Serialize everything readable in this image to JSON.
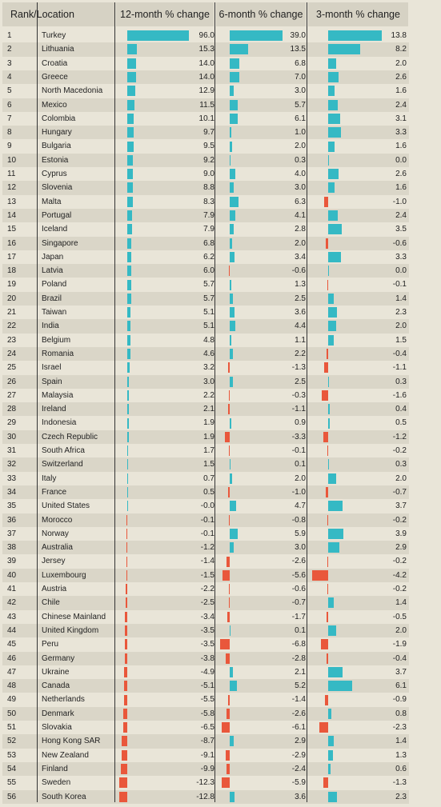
{
  "headers": {
    "rank_location": "Rank/Location",
    "col1": "12-month % change",
    "col2": "6-month % change",
    "col3": "3-month % change"
  },
  "colors": {
    "positive": "#35b9c4",
    "negative": "#e9573b"
  },
  "chart_data": {
    "type": "table",
    "columns": [
      "Rank",
      "Location",
      "12-month % change",
      "6-month % change",
      "3-month % change"
    ],
    "rows": [
      [
        1,
        "Turkey",
        "96.0",
        "39.0",
        "13.8"
      ],
      [
        2,
        "Lithuania",
        "15.3",
        "13.5",
        "8.2"
      ],
      [
        3,
        "Croatia",
        "14.0",
        "6.8",
        "2.0"
      ],
      [
        4,
        "Greece",
        "14.0",
        "7.0",
        "2.6"
      ],
      [
        5,
        "North Macedonia",
        "12.9",
        "3.0",
        "1.6"
      ],
      [
        6,
        "Mexico",
        "11.5",
        "5.7",
        "2.4"
      ],
      [
        7,
        "Colombia",
        "10.1",
        "6.1",
        "3.1"
      ],
      [
        8,
        "Hungary",
        "9.7",
        "1.0",
        "3.3"
      ],
      [
        9,
        "Bulgaria",
        "9.5",
        "2.0",
        "1.6"
      ],
      [
        10,
        "Estonia",
        "9.2",
        "0.3",
        "0.0"
      ],
      [
        11,
        "Cyprus",
        "9.0",
        "4.0",
        "2.6"
      ],
      [
        12,
        "Slovenia",
        "8.8",
        "3.0",
        "1.6"
      ],
      [
        13,
        "Malta",
        "8.3",
        "6.3",
        "-1.0"
      ],
      [
        14,
        "Portugal",
        "7.9",
        "4.1",
        "2.4"
      ],
      [
        15,
        "Iceland",
        "7.9",
        "2.8",
        "3.5"
      ],
      [
        16,
        "Singapore",
        "6.8",
        "2.0",
        "-0.6"
      ],
      [
        17,
        "Japan",
        "6.2",
        "3.4",
        "3.3"
      ],
      [
        18,
        "Latvia",
        "6.0",
        "-0.6",
        "0.0"
      ],
      [
        19,
        "Poland",
        "5.7",
        "1.3",
        "-0.1"
      ],
      [
        20,
        "Brazil",
        "5.7",
        "2.5",
        "1.4"
      ],
      [
        21,
        "Taiwan",
        "5.1",
        "3.6",
        "2.3"
      ],
      [
        22,
        "India",
        "5.1",
        "4.4",
        "2.0"
      ],
      [
        23,
        "Belgium",
        "4.8",
        "1.1",
        "1.5"
      ],
      [
        24,
        "Romania",
        "4.6",
        "2.2",
        "-0.4"
      ],
      [
        25,
        "Israel",
        "3.2",
        "-1.3",
        "-1.1"
      ],
      [
        26,
        "Spain",
        "3.0",
        "2.5",
        "0.3"
      ],
      [
        27,
        "Malaysia",
        "2.2",
        "-0.3",
        "-1.6"
      ],
      [
        28,
        "Ireland",
        "2.1",
        "-1.1",
        "0.4"
      ],
      [
        29,
        "Indonesia",
        "1.9",
        "0.9",
        "0.5"
      ],
      [
        30,
        "Czech Republic",
        "1.9",
        "-3.3",
        "-1.2"
      ],
      [
        31,
        "South Africa",
        "1.7",
        "-0.1",
        "-0.2"
      ],
      [
        32,
        "Switzerland",
        "1.5",
        "0.1",
        "0.3"
      ],
      [
        33,
        "Italy",
        "0.7",
        "2.0",
        "2.0"
      ],
      [
        34,
        "France",
        "0.5",
        "-1.0",
        "-0.7"
      ],
      [
        35,
        "United States",
        "-0.0",
        "4.7",
        "3.7"
      ],
      [
        36,
        "Morocco",
        "-0.1",
        "-0.8",
        "-0.2"
      ],
      [
        37,
        "Norway",
        "-0.1",
        "5.9",
        "3.9"
      ],
      [
        38,
        "Australia",
        "-1.2",
        "3.0",
        "2.9"
      ],
      [
        39,
        "Jersey",
        "-1.4",
        "-2.6",
        "-0.2"
      ],
      [
        40,
        "Luxembourg",
        "-1.5",
        "-5.6",
        "-4.2"
      ],
      [
        41,
        "Austria",
        "-2.2",
        "-0.6",
        "-0.2"
      ],
      [
        42,
        "Chile",
        "-2.5",
        "-0.7",
        "1.4"
      ],
      [
        43,
        "Chinese Mainland",
        "-3.4",
        "-1.7",
        "-0.5"
      ],
      [
        44,
        "United Kingdom",
        "-3.5",
        "0.1",
        "2.0"
      ],
      [
        45,
        "Peru",
        "-3.5",
        "-6.8",
        "-1.9"
      ],
      [
        46,
        "Germany",
        "-3.8",
        "-2.8",
        "-0.4"
      ],
      [
        47,
        "Ukraine",
        "-4.9",
        "2.1",
        "3.7"
      ],
      [
        48,
        "Canada",
        "-5.1",
        "5.2",
        "6.1"
      ],
      [
        49,
        "Netherlands",
        "-5.5",
        "-1.4",
        "-0.9"
      ],
      [
        50,
        "Denmark",
        "-5.8",
        "-2.6",
        "0.8"
      ],
      [
        51,
        "Slovakia",
        "-6.5",
        "-6.1",
        "-2.3"
      ],
      [
        52,
        "Hong Kong SAR",
        "-8.7",
        "2.9",
        "1.4"
      ],
      [
        53,
        "New Zealand",
        "-9.1",
        "-2.9",
        "1.3"
      ],
      [
        54,
        "Finland",
        "-9.9",
        "-2.4",
        "0.6"
      ],
      [
        55,
        "Sweden",
        "-12.3",
        "-5.9",
        "-1.3"
      ],
      [
        56,
        "South Korea",
        "-12.8",
        "3.6",
        "2.3"
      ]
    ]
  }
}
